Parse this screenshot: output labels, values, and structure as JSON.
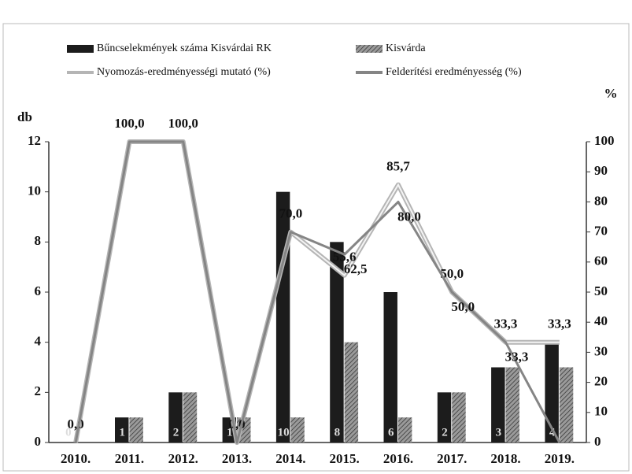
{
  "chart_data": {
    "type": "bar",
    "categories": [
      "2010.",
      "2011.",
      "2012.",
      "2013.",
      "2014.",
      "2015.",
      "2016.",
      "2017.",
      "2018.",
      "2019."
    ],
    "y_label": "db",
    "y2_label": "%",
    "ylim": [
      0,
      12
    ],
    "yticks": [
      0,
      2,
      4,
      6,
      8,
      10,
      12
    ],
    "y2lim": [
      0,
      100
    ],
    "y2ticks": [
      0,
      10,
      20,
      30,
      40,
      50,
      60,
      70,
      80,
      90,
      100
    ],
    "series": [
      {
        "name": "Bűncselekmények száma Kisvárdai RK",
        "type": "bar",
        "color": "#1c1c1c",
        "data_labels": true,
        "values": [
          0,
          1,
          2,
          1,
          10,
          8,
          6,
          2,
          3,
          4
        ]
      },
      {
        "name": "Kisvárda",
        "type": "bar",
        "color": "#6e6e6e",
        "pattern": "hatch",
        "values": [
          0,
          1,
          2,
          1,
          1,
          4,
          1,
          2,
          3,
          3
        ]
      },
      {
        "name": "Nyomozás-eredményességi mutató (%)",
        "type": "line",
        "axis": "y2",
        "color": "#b5b5b5",
        "values": [
          0,
          100,
          100,
          0,
          70,
          55.6,
          85.7,
          50,
          33.3,
          33.3
        ],
        "value_labels": [
          "0,0",
          "100,0",
          "100,0",
          "0,0",
          "70,0",
          "55,6",
          "85,7",
          "50,0",
          "33,3",
          "33,3"
        ]
      },
      {
        "name": "Felderítési eredményesség (%)",
        "type": "line",
        "axis": "y2",
        "color": "#858585",
        "values": [
          0,
          100,
          100,
          0,
          70,
          62.5,
          80,
          50,
          33.3,
          0
        ],
        "value_labels": [
          null,
          null,
          null,
          null,
          null,
          "62,5",
          "80,0",
          "50,0",
          "33,3",
          null
        ]
      }
    ]
  }
}
